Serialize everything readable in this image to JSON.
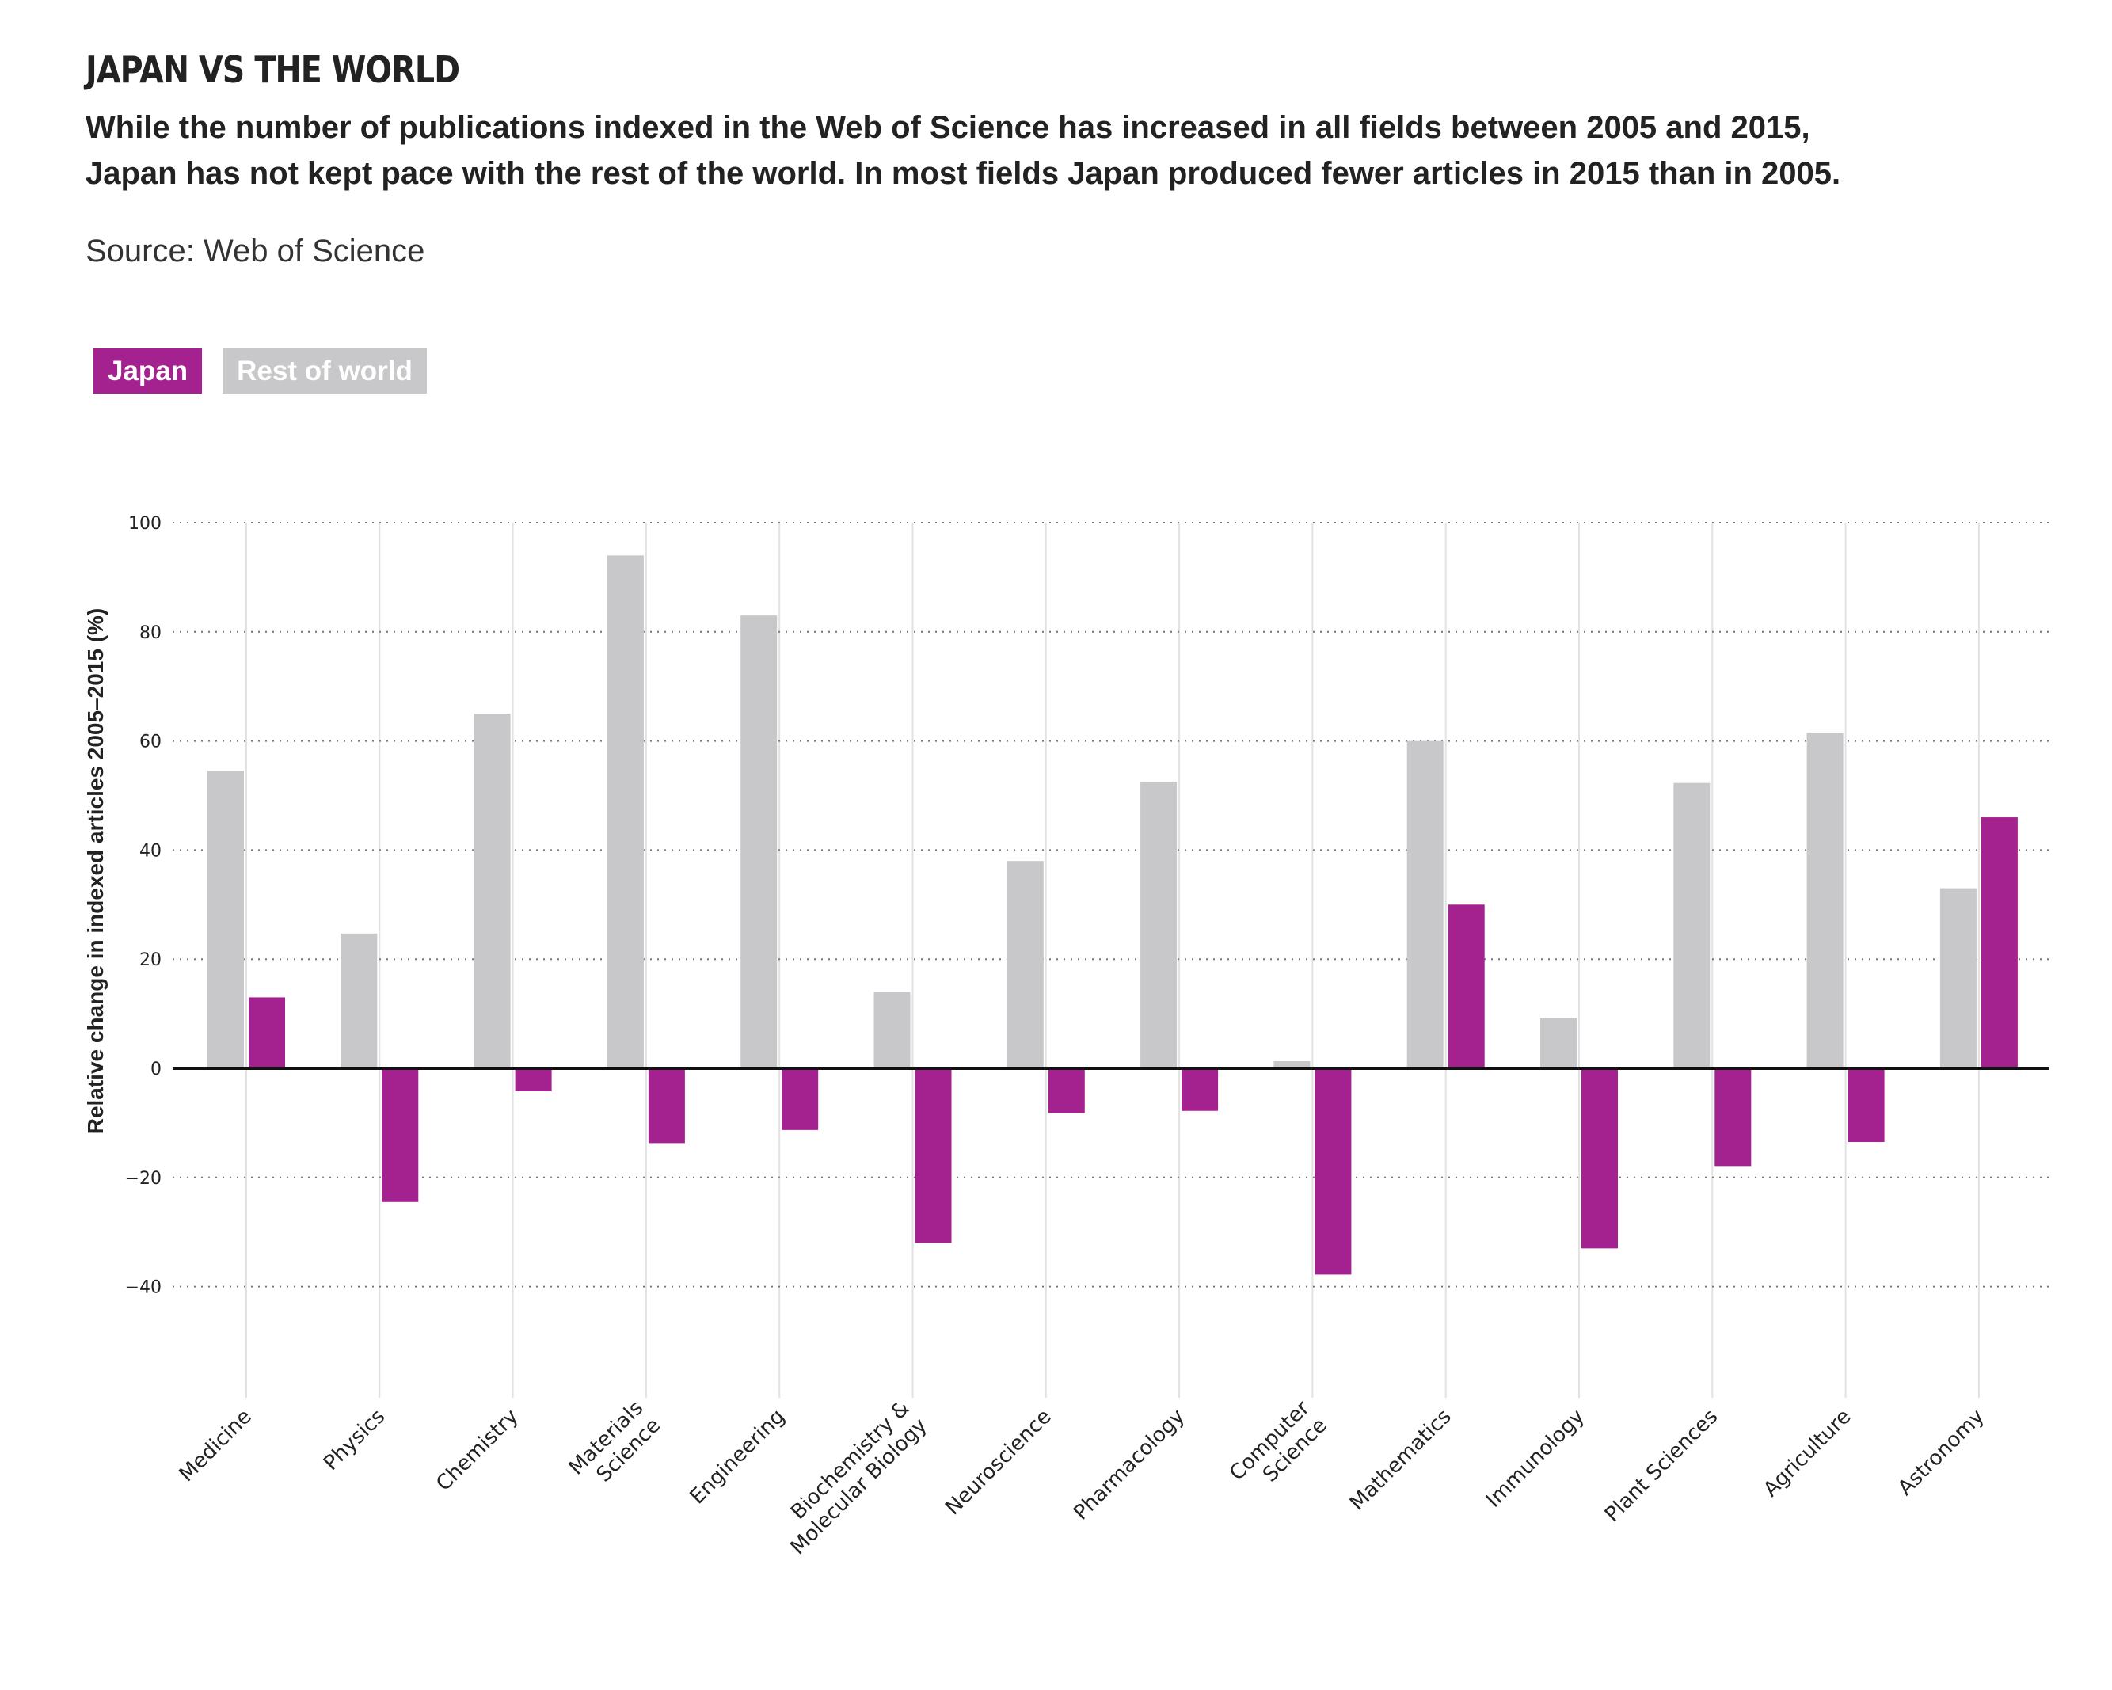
{
  "chart_data": {
    "type": "bar",
    "title": "JAPAN VS THE WORLD",
    "subtitle_lines": [
      "While the number of publications indexed in the Web of Science has increased in all fields between 2005 and 2015,",
      "Japan has not kept pace with the rest of the world. In most fields Japan produced fewer articles in 2015 than in 2005."
    ],
    "source": "Source: Web of Science",
    "xlabel": "",
    "ylabel": "Relative change in indexed articles  2005–2015 (%)",
    "ylim": [
      -60,
      100
    ],
    "yticks": [
      -40,
      -20,
      0,
      20,
      40,
      60,
      80,
      100
    ],
    "ytick_labels": [
      "−40",
      "−20",
      "0",
      "20",
      "40",
      "60",
      "80",
      "100"
    ],
    "grid": true,
    "legend_position": "top-left",
    "categories": [
      [
        "Medicine"
      ],
      [
        "Physics"
      ],
      [
        "Chemistry"
      ],
      [
        "Materials",
        "Science"
      ],
      [
        "Engineering"
      ],
      [
        "Biochemistry &",
        "Molecular Biology"
      ],
      [
        "Neuroscience"
      ],
      [
        "Pharmacology"
      ],
      [
        "Computer",
        "Science"
      ],
      [
        "Mathematics"
      ],
      [
        "Immunology"
      ],
      [
        "Plant Sciences"
      ],
      [
        "Agriculture"
      ],
      [
        "Astronomy"
      ]
    ],
    "series": [
      {
        "name": "Rest of world",
        "color": "#c8c8ca",
        "values": [
          54.5,
          24.7,
          65,
          94,
          83,
          14,
          38,
          52.5,
          1.3,
          60,
          9.2,
          52.3,
          61.5,
          33
        ]
      },
      {
        "name": "Japan",
        "color": "#a4228f",
        "values": [
          13,
          -24.5,
          -4.2,
          -13.7,
          -11.3,
          -32,
          -8.2,
          -7.8,
          -37.8,
          30,
          -33,
          -17.9,
          -13.5,
          46
        ]
      }
    ]
  }
}
